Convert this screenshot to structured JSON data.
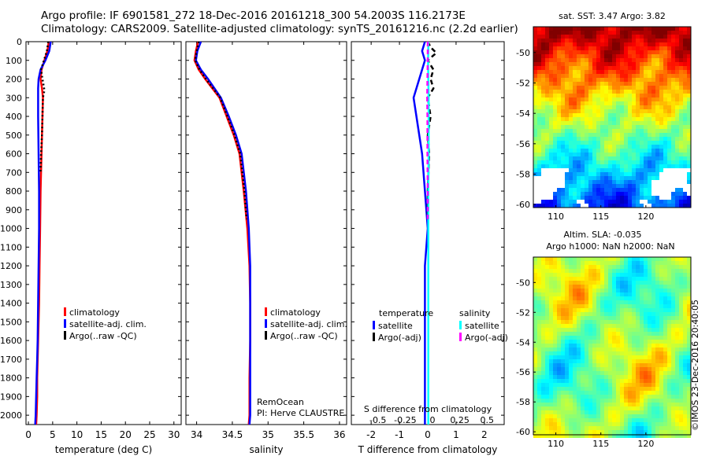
{
  "title_line1": "Argo profile: IF 6901581_272 18-Dec-2016 20161218_300 54.2003S 116.2173E",
  "title_line2": "Climatology: CARS2009. Satellite-adjusted climatology: synTS_20161216.nc (2.2d earlier)",
  "stamp": "©IMOS 23-Dec-2016 20:40:05",
  "colors": {
    "climatology": "#ff0000",
    "satellite": "#0000ff",
    "argo": "#000000",
    "satellite_cyan": "#00ffff",
    "argo_adj": "#ff00ff"
  },
  "chart_data": [
    {
      "type": "line",
      "xlabel": "temperature (deg C)",
      "xlim": [
        -0.5,
        31.5
      ],
      "xticks": [
        0,
        5,
        10,
        15,
        20,
        25,
        30
      ],
      "ylim": [
        0,
        2050
      ],
      "yticks": [
        0,
        100,
        200,
        300,
        400,
        500,
        600,
        700,
        800,
        900,
        1000,
        1100,
        1200,
        1300,
        1400,
        1500,
        1600,
        1700,
        1800,
        1900,
        2000
      ],
      "legend": {
        "placement": "lower-center",
        "entries": [
          "climatology",
          "satellite-adj. clim.",
          "Argo(..raw -QC)"
        ]
      },
      "series": [
        {
          "name": "climatology",
          "color": "#ff0000",
          "style": "solid",
          "x": [
            4.2,
            3.9,
            3.3,
            2.7,
            2.5,
            2.8,
            3.0,
            2.9,
            2.7,
            2.5,
            2.4,
            2.3,
            2.2,
            2.0,
            1.9,
            1.8,
            1.8,
            1.7,
            1.6
          ],
          "y": [
            0,
            50,
            100,
            150,
            200,
            250,
            300,
            400,
            600,
            800,
            1000,
            1200,
            1400,
            1600,
            1700,
            1800,
            1900,
            2000,
            2050
          ]
        },
        {
          "name": "satellite-adj. clim.",
          "color": "#0000ff",
          "style": "solid",
          "x": [
            4.6,
            4.3,
            3.5,
            2.5,
            2.1,
            2.0,
            2.0,
            2.0,
            2.1,
            2.2,
            2.2,
            2.1,
            2.0,
            1.9,
            1.8,
            1.7,
            1.6,
            1.5,
            1.4
          ],
          "y": [
            0,
            50,
            100,
            150,
            200,
            250,
            300,
            400,
            600,
            800,
            1000,
            1200,
            1400,
            1600,
            1700,
            1800,
            1900,
            2000,
            2050
          ]
        },
        {
          "name": "Argo(..raw -QC)",
          "color": "#000000",
          "style": "dotted",
          "x": [
            4.1,
            3.8,
            3.2,
            2.6,
            2.9,
            3.3,
            3.0,
            2.9,
            2.8,
            2.6,
            2.5
          ],
          "y": [
            0,
            50,
            100,
            150,
            200,
            260,
            300,
            400,
            500,
            600,
            700
          ]
        }
      ]
    },
    {
      "type": "line",
      "xlabel": "salinity",
      "xlim": [
        33.85,
        36.1
      ],
      "xticks": [
        34,
        34.5,
        35,
        35.5,
        36
      ],
      "ylim": [
        0,
        2050
      ],
      "legend": {
        "placement": "lower-center",
        "entries": [
          "climatology",
          "satellite-adj. clim.",
          "Argo(..raw -QC)"
        ]
      },
      "annotations": [
        "RemOcean",
        "PI: Herve CLAUSTRE"
      ],
      "series": [
        {
          "name": "climatology",
          "color": "#ff0000",
          "style": "solid",
          "x": [
            34.02,
            33.99,
            33.97,
            34.03,
            34.12,
            34.22,
            34.32,
            34.42,
            34.52,
            34.6,
            34.66,
            34.71,
            34.74,
            34.75,
            34.75,
            34.74,
            34.74,
            34.73
          ],
          "y": [
            0,
            50,
            100,
            150,
            200,
            250,
            300,
            400,
            500,
            600,
            800,
            1000,
            1200,
            1400,
            1600,
            1800,
            2000,
            2050
          ]
        },
        {
          "name": "satellite-adj. clim.",
          "color": "#0000ff",
          "style": "solid",
          "x": [
            34.06,
            34.01,
            33.99,
            34.06,
            34.16,
            34.25,
            34.34,
            34.45,
            34.55,
            34.63,
            34.69,
            34.73,
            34.75,
            34.75,
            34.75,
            34.75,
            34.75,
            34.74
          ],
          "y": [
            0,
            50,
            100,
            150,
            200,
            250,
            300,
            400,
            500,
            600,
            800,
            1000,
            1200,
            1400,
            1600,
            1800,
            2000,
            2050
          ]
        },
        {
          "name": "Argo(..raw -QC)",
          "color": "#000000",
          "style": "dotted",
          "x": [
            34.03,
            34.0,
            33.98,
            34.04,
            34.13,
            34.23,
            34.33,
            34.43,
            34.53,
            34.61,
            34.67,
            34.7
          ],
          "y": [
            0,
            50,
            100,
            150,
            200,
            250,
            300,
            400,
            500,
            600,
            800,
            950
          ]
        }
      ]
    },
    {
      "type": "line",
      "xlabel": "T difference from climatology",
      "xlabel_top": "S difference from climatology",
      "xlim": [
        -2.7,
        2.7
      ],
      "xticks": [
        -2,
        -1,
        0,
        1,
        2
      ],
      "xticks_top": [
        -0.5,
        -0.25,
        0,
        0.25,
        0.5
      ],
      "ylim": [
        0,
        2050
      ],
      "legend": {
        "placement": "lower-center",
        "groups": [
          {
            "title": "temperature",
            "entries": [
              "satellite",
              "Argo(-adj)"
            ]
          },
          {
            "title": "salinity",
            "entries": [
              "satellite",
              "Argo(-adj)"
            ]
          }
        ]
      },
      "series": [
        {
          "name": "temperature satellite",
          "color": "#0000ff",
          "style": "solid",
          "x": [
            -0.1,
            -0.2,
            -0.1,
            -0.3,
            -0.5,
            -0.4,
            -0.3,
            -0.2,
            -0.1,
            -0.05,
            0,
            -0.1,
            -0.1,
            -0.1,
            -0.1,
            -0.1,
            -0.1
          ],
          "y": [
            0,
            50,
            100,
            200,
            300,
            400,
            500,
            600,
            800,
            900,
            1000,
            1200,
            1400,
            1600,
            1800,
            2000,
            2050
          ]
        },
        {
          "name": "temperature Argo(-adj)",
          "color": "#000000",
          "style": "dashed",
          "x": [
            0.0,
            0.1,
            0.3,
            0.0,
            0.2,
            0.1,
            0.2,
            0.0,
            0.1,
            0.0,
            0.05,
            0.0,
            0.0
          ],
          "y": [
            0,
            30,
            60,
            100,
            150,
            200,
            250,
            300,
            400,
            500,
            600,
            800,
            950
          ]
        },
        {
          "name": "salinity satellite",
          "color": "#00ffff",
          "style": "solid",
          "x": [
            0.02,
            0.02,
            0.01,
            0.02,
            0.03,
            0.03,
            0.03,
            0.02,
            0.02,
            0.02,
            0.02,
            0.02,
            0.02
          ],
          "y": [
            0,
            50,
            100,
            200,
            300,
            400,
            600,
            800,
            1000,
            1200,
            1600,
            2000,
            2050
          ]
        },
        {
          "name": "salinity Argo(-adj)",
          "color": "#ff00ff",
          "style": "dashed",
          "x": [
            0.0,
            0.0,
            -0.01,
            -0.02,
            -0.01,
            -0.01,
            0.0,
            0.0,
            0.0
          ],
          "y": [
            0,
            100,
            200,
            300,
            400,
            600,
            800,
            900,
            950
          ]
        }
      ]
    },
    {
      "type": "heatmap",
      "title": "sat. SST: 3.47  Argo: 3.82",
      "xlim": [
        107.5,
        125
      ],
      "ylim": [
        -60.2,
        -48.3
      ],
      "xticks": [
        110,
        115,
        120
      ],
      "yticks": [
        -50,
        -52,
        -54,
        -56,
        -58,
        -60
      ],
      "marker": {
        "lon": 116.2173,
        "lat": -54.2003
      }
    },
    {
      "type": "heatmap",
      "title": "Altim. SLA: -0.035",
      "subtitle": "Argo h1000: NaN h2000: NaN",
      "xlim": [
        107.5,
        125
      ],
      "ylim": [
        -60.2,
        -48.3
      ],
      "xticks": [
        110,
        115,
        120
      ],
      "yticks": [
        -50,
        -52,
        -54,
        -56,
        -58,
        -60
      ],
      "marker": {
        "lon": 116.2173,
        "lat": -54.2003
      }
    }
  ]
}
